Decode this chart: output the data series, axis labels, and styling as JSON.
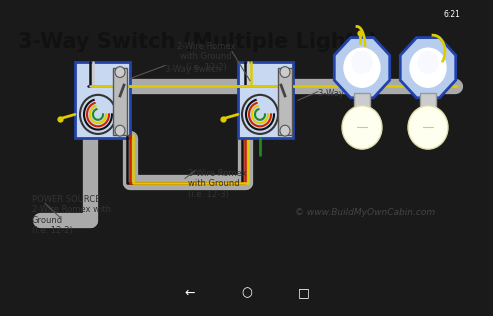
{
  "title": "3-Way Switch (Multiple Lights)",
  "title_fontsize": 15,
  "title_color": "#111111",
  "background_color": "#d4d4d4",
  "labels": {
    "power_source": "POWER SOURCE\n2-Wire Romex with\nGround\n(i.e. 12-2)",
    "wire_label_top": "2-Wire Romex\nwith Ground\n(i.e. 12-2)",
    "switch1_label": "3-Way Switch",
    "switch2_label": "3-Way Switch",
    "wire_label_bottom": "3-Wire Romex\nwith Ground\n(i.e. 12-3)",
    "copyright": "© www.BuildMyOwnCabin.com"
  },
  "colors": {
    "black_wire": "#111111",
    "white_wire": "#cccccc",
    "red_wire": "#cc2200",
    "green_wire": "#228822",
    "yellow_wire": "#ddcc00",
    "gray_conduit": "#aaaaaa",
    "box_blue": "#2244aa",
    "box_fill": "#c8d8f0",
    "switch_body": "#cccccc",
    "light_globe_fill": "#fffff0",
    "light_cap_blue": "#2244aa",
    "light_cap_fill": "#b8ccee",
    "stem_color": "#dddddd",
    "wire_bundle_black": "#111111"
  },
  "status_bar_color": "#1a1a1a",
  "nav_bar_color": "#1a1a1a"
}
